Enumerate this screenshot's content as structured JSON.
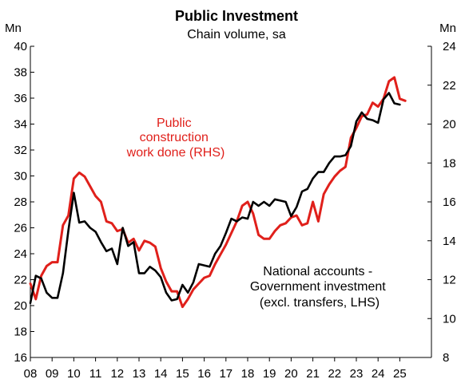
{
  "chart_data": {
    "type": "line",
    "title": "Public Investment",
    "subtitle": "Chain volume, sa",
    "left_axis_unit": "Mn",
    "right_axis_unit": "Mn",
    "ylim_left": [
      16,
      40
    ],
    "yticks_left": [
      16,
      18,
      20,
      22,
      24,
      26,
      28,
      30,
      32,
      34,
      36,
      38,
      40
    ],
    "ylim_right": [
      8,
      24
    ],
    "yticks_right": [
      8,
      10,
      12,
      14,
      16,
      18,
      20,
      22,
      24
    ],
    "xlim": [
      2008,
      2025.75
    ],
    "xtick_labels": [
      "08",
      "09",
      "10",
      "11",
      "12",
      "13",
      "14",
      "15",
      "16",
      "17",
      "18",
      "19",
      "20",
      "21",
      "22",
      "23",
      "24",
      "25"
    ],
    "grid": false,
    "legend": "annotations",
    "annotations": {
      "red": [
        "Public",
        "construction",
        "work done (RHS)"
      ],
      "black": [
        "National accounts -",
        "Government  investment",
        "(excl. transfers, LHS)"
      ]
    },
    "series": [
      {
        "name": "National accounts - Government investment (excl. transfers, LHS)",
        "axis": "left",
        "color": "#000000",
        "x": [
          2008.0,
          2008.25,
          2008.5,
          2008.75,
          2009.0,
          2009.25,
          2009.5,
          2009.75,
          2010.0,
          2010.25,
          2010.5,
          2010.75,
          2011.0,
          2011.25,
          2011.5,
          2011.75,
          2012.0,
          2012.25,
          2012.5,
          2012.75,
          2013.0,
          2013.25,
          2013.5,
          2013.75,
          2014.0,
          2014.25,
          2014.5,
          2014.75,
          2015.0,
          2015.25,
          2015.5,
          2015.75,
          2016.0,
          2016.25,
          2016.5,
          2016.75,
          2017.0,
          2017.25,
          2017.5,
          2017.75,
          2018.0,
          2018.25,
          2018.5,
          2018.75,
          2019.0,
          2019.25,
          2019.5,
          2019.75,
          2020.0,
          2020.25,
          2020.5,
          2020.75,
          2021.0,
          2021.25,
          2021.5,
          2021.75,
          2022.0,
          2022.25,
          2022.5,
          2022.75,
          2023.0,
          2023.25,
          2023.5,
          2023.75,
          2024.0,
          2024.25,
          2024.5,
          2024.75,
          2025.0
        ],
        "values": [
          20.2,
          22.3,
          22.1,
          21.0,
          20.6,
          20.6,
          22.5,
          25.8,
          28.7,
          26.4,
          26.5,
          26.0,
          25.7,
          24.9,
          24.2,
          24.4,
          23.2,
          26.0,
          24.6,
          24.9,
          22.5,
          22.5,
          23.0,
          22.7,
          22.2,
          21.0,
          20.4,
          20.5,
          21.6,
          21.0,
          21.8,
          23.2,
          23.1,
          23.0,
          24.0,
          24.6,
          25.6,
          26.7,
          26.5,
          26.8,
          26.7,
          28.0,
          27.7,
          28.0,
          27.7,
          28.2,
          28.1,
          28.0,
          26.9,
          27.6,
          28.8,
          29.0,
          29.8,
          30.3,
          30.3,
          31.0,
          31.5,
          31.5,
          31.6,
          32.3,
          34.2,
          34.9,
          34.4,
          34.3,
          34.1,
          35.9,
          36.4,
          35.6,
          35.5
        ]
      },
      {
        "name": "Public construction work done (RHS)",
        "axis": "right",
        "color": "#e0201b",
        "x": [
          2008.0,
          2008.25,
          2008.5,
          2008.75,
          2009.0,
          2009.25,
          2009.5,
          2009.75,
          2010.0,
          2010.25,
          2010.5,
          2010.75,
          2011.0,
          2011.25,
          2011.5,
          2011.75,
          2012.0,
          2012.25,
          2012.5,
          2012.75,
          2013.0,
          2013.25,
          2013.5,
          2013.75,
          2014.0,
          2014.25,
          2014.5,
          2014.75,
          2015.0,
          2015.25,
          2015.5,
          2015.75,
          2016.0,
          2016.25,
          2016.5,
          2016.75,
          2017.0,
          2017.25,
          2017.5,
          2017.75,
          2018.0,
          2018.25,
          2018.5,
          2018.75,
          2019.0,
          2019.25,
          2019.5,
          2019.75,
          2020.0,
          2020.25,
          2020.5,
          2020.75,
          2021.0,
          2021.25,
          2021.5,
          2021.75,
          2022.0,
          2022.25,
          2022.5,
          2022.75,
          2023.0,
          2023.25,
          2023.5,
          2023.75,
          2024.0,
          2024.25,
          2024.5,
          2024.75,
          2025.0,
          2025.25
        ],
        "values": [
          11.8,
          11.0,
          12.2,
          12.7,
          12.9,
          12.9,
          14.8,
          15.3,
          17.2,
          17.5,
          17.3,
          16.8,
          16.3,
          16.0,
          15.0,
          14.9,
          14.5,
          14.6,
          13.9,
          14.1,
          13.5,
          14.0,
          13.9,
          13.7,
          12.6,
          11.9,
          11.4,
          11.4,
          10.6,
          11.0,
          11.5,
          11.8,
          12.1,
          12.2,
          12.8,
          13.3,
          13.8,
          14.4,
          15.0,
          15.8,
          16.0,
          15.4,
          14.3,
          14.1,
          14.1,
          14.5,
          14.8,
          14.9,
          15.2,
          15.3,
          14.8,
          14.9,
          16.0,
          15.0,
          16.4,
          16.9,
          17.3,
          17.6,
          17.8,
          19.3,
          19.8,
          20.4,
          20.5,
          21.1,
          20.9,
          21.3,
          22.2,
          22.4,
          21.3,
          21.2
        ]
      }
    ]
  }
}
